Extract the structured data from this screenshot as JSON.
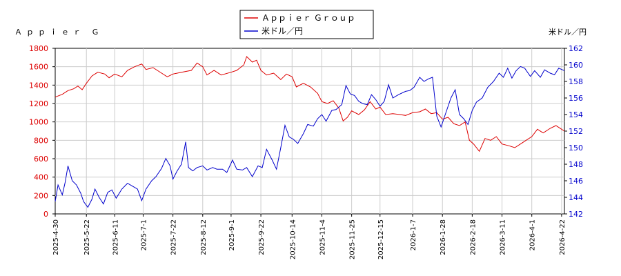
{
  "chart_data": {
    "type": "line",
    "title_left": "Ａｐｐｉｅｒ Ｇ",
    "title_right": "米ドル／円",
    "legend": {
      "position": "top-center",
      "entries": [
        {
          "name": "Ａｐｐｉｅｒ Ｇｒｏｕｐ",
          "color": "#dd0000"
        },
        {
          "name": "米ドル／円",
          "color": "#0000cc"
        }
      ]
    },
    "grid": true,
    "x_range": [
      "2025-04-30",
      "2026-04-24"
    ],
    "x_ticks": [
      "2025-4-30",
      "2025-5-22",
      "2025-6-11",
      "2025-7-1",
      "2025-7-22",
      "2025-8-12",
      "2025-9-1",
      "2025-9-22",
      "2025-10-14",
      "2025-11-4",
      "2025-11-25",
      "2025-12-15",
      "2026-1-7",
      "2026-1-28",
      "2026-2-18",
      "2026-3-11",
      "2026-4-1",
      "2026-4-22"
    ],
    "y_left": {
      "min": 0,
      "max": 1800,
      "ticks": [
        0,
        200,
        400,
        600,
        800,
        1000,
        1200,
        1400,
        1600,
        1800
      ],
      "color": "#dd0000"
    },
    "y_right": {
      "min": 142,
      "max": 162,
      "ticks": [
        142,
        144,
        146,
        148,
        150,
        152,
        154,
        156,
        158,
        160,
        162
      ],
      "color": "#0000cc"
    },
    "series": [
      {
        "name": "Ａｐｐｉｅｒ Ｇｒｏｕｐ",
        "axis": "left",
        "color": "#dd0000",
        "points": [
          [
            "2025-04-30",
            1270
          ],
          [
            "2025-05-05",
            1300
          ],
          [
            "2025-05-09",
            1340
          ],
          [
            "2025-05-13",
            1360
          ],
          [
            "2025-05-16",
            1390
          ],
          [
            "2025-05-19",
            1350
          ],
          [
            "2025-05-22",
            1420
          ],
          [
            "2025-05-26",
            1500
          ],
          [
            "2025-05-30",
            1540
          ],
          [
            "2025-06-04",
            1520
          ],
          [
            "2025-06-07",
            1480
          ],
          [
            "2025-06-11",
            1520
          ],
          [
            "2025-06-16",
            1490
          ],
          [
            "2025-06-20",
            1560
          ],
          [
            "2025-06-25",
            1600
          ],
          [
            "2025-06-30",
            1630
          ],
          [
            "2025-07-03",
            1570
          ],
          [
            "2025-07-08",
            1590
          ],
          [
            "2025-07-14",
            1530
          ],
          [
            "2025-07-18",
            1490
          ],
          [
            "2025-07-22",
            1520
          ],
          [
            "2025-07-28",
            1540
          ],
          [
            "2025-08-04",
            1560
          ],
          [
            "2025-08-08",
            1640
          ],
          [
            "2025-08-12",
            1600
          ],
          [
            "2025-08-15",
            1510
          ],
          [
            "2025-08-20",
            1560
          ],
          [
            "2025-08-25",
            1510
          ],
          [
            "2025-09-01",
            1540
          ],
          [
            "2025-09-05",
            1560
          ],
          [
            "2025-09-10",
            1620
          ],
          [
            "2025-09-12",
            1710
          ],
          [
            "2025-09-16",
            1650
          ],
          [
            "2025-09-19",
            1670
          ],
          [
            "2025-09-22",
            1560
          ],
          [
            "2025-09-26",
            1510
          ],
          [
            "2025-10-01",
            1530
          ],
          [
            "2025-10-06",
            1460
          ],
          [
            "2025-10-10",
            1520
          ],
          [
            "2025-10-14",
            1490
          ],
          [
            "2025-10-17",
            1380
          ],
          [
            "2025-10-22",
            1420
          ],
          [
            "2025-10-27",
            1380
          ],
          [
            "2025-11-01",
            1310
          ],
          [
            "2025-11-04",
            1220
          ],
          [
            "2025-11-08",
            1200
          ],
          [
            "2025-11-12",
            1230
          ],
          [
            "2025-11-16",
            1150
          ],
          [
            "2025-11-19",
            1010
          ],
          [
            "2025-11-22",
            1050
          ],
          [
            "2025-11-25",
            1120
          ],
          [
            "2025-11-30",
            1080
          ],
          [
            "2025-12-04",
            1130
          ],
          [
            "2025-12-08",
            1220
          ],
          [
            "2025-12-12",
            1140
          ],
          [
            "2025-12-15",
            1160
          ],
          [
            "2025-12-19",
            1080
          ],
          [
            "2025-12-24",
            1090
          ],
          [
            "2025-12-29",
            1080
          ],
          [
            "2026-01-02",
            1070
          ],
          [
            "2026-01-07",
            1100
          ],
          [
            "2026-01-12",
            1110
          ],
          [
            "2026-01-16",
            1140
          ],
          [
            "2026-01-20",
            1090
          ],
          [
            "2026-01-24",
            1100
          ],
          [
            "2026-01-28",
            1030
          ],
          [
            "2026-02-01",
            1050
          ],
          [
            "2026-02-05",
            980
          ],
          [
            "2026-02-09",
            960
          ],
          [
            "2026-02-13",
            1000
          ],
          [
            "2026-02-16",
            800
          ],
          [
            "2026-02-19",
            760
          ],
          [
            "2026-02-23",
            680
          ],
          [
            "2026-02-27",
            820
          ],
          [
            "2026-03-03",
            800
          ],
          [
            "2026-03-07",
            840
          ],
          [
            "2026-03-11",
            760
          ],
          [
            "2026-03-16",
            740
          ],
          [
            "2026-03-20",
            720
          ],
          [
            "2026-03-24",
            760
          ],
          [
            "2026-03-28",
            800
          ],
          [
            "2026-04-01",
            840
          ],
          [
            "2026-04-05",
            920
          ],
          [
            "2026-04-09",
            880
          ],
          [
            "2026-04-14",
            930
          ],
          [
            "2026-04-18",
            960
          ],
          [
            "2026-04-22",
            920
          ],
          [
            "2026-04-24",
            900
          ]
        ]
      },
      {
        "name": "米ドル／円",
        "axis": "right",
        "color": "#0000cc",
        "points": [
          [
            "2025-04-30",
            143.5
          ],
          [
            "2025-05-02",
            145.5
          ],
          [
            "2025-05-05",
            144.3
          ],
          [
            "2025-05-07",
            145.8
          ],
          [
            "2025-05-09",
            147.8
          ],
          [
            "2025-05-12",
            146.0
          ],
          [
            "2025-05-15",
            145.5
          ],
          [
            "2025-05-18",
            144.5
          ],
          [
            "2025-05-20",
            143.5
          ],
          [
            "2025-05-23",
            142.8
          ],
          [
            "2025-05-26",
            143.8
          ],
          [
            "2025-05-28",
            145.0
          ],
          [
            "2025-05-31",
            144.0
          ],
          [
            "2025-06-03",
            143.2
          ],
          [
            "2025-06-06",
            144.6
          ],
          [
            "2025-06-09",
            144.9
          ],
          [
            "2025-06-12",
            143.9
          ],
          [
            "2025-06-16",
            145.0
          ],
          [
            "2025-06-20",
            145.7
          ],
          [
            "2025-06-24",
            145.3
          ],
          [
            "2025-06-27",
            145.0
          ],
          [
            "2025-06-30",
            143.6
          ],
          [
            "2025-07-03",
            145.0
          ],
          [
            "2025-07-07",
            146.0
          ],
          [
            "2025-07-10",
            146.5
          ],
          [
            "2025-07-14",
            147.5
          ],
          [
            "2025-07-17",
            148.7
          ],
          [
            "2025-07-20",
            147.8
          ],
          [
            "2025-07-22",
            146.2
          ],
          [
            "2025-07-25",
            147.2
          ],
          [
            "2025-07-28",
            148.0
          ],
          [
            "2025-07-31",
            150.7
          ],
          [
            "2025-08-02",
            147.6
          ],
          [
            "2025-08-05",
            147.2
          ],
          [
            "2025-08-08",
            147.6
          ],
          [
            "2025-08-12",
            147.8
          ],
          [
            "2025-08-15",
            147.3
          ],
          [
            "2025-08-19",
            147.6
          ],
          [
            "2025-08-22",
            147.4
          ],
          [
            "2025-08-26",
            147.4
          ],
          [
            "2025-08-29",
            147.0
          ],
          [
            "2025-09-02",
            148.5
          ],
          [
            "2025-09-05",
            147.4
          ],
          [
            "2025-09-09",
            147.3
          ],
          [
            "2025-09-12",
            147.6
          ],
          [
            "2025-09-16",
            146.5
          ],
          [
            "2025-09-20",
            147.8
          ],
          [
            "2025-09-23",
            147.6
          ],
          [
            "2025-09-26",
            149.8
          ],
          [
            "2025-09-30",
            148.5
          ],
          [
            "2025-10-03",
            147.4
          ],
          [
            "2025-10-06",
            150.0
          ],
          [
            "2025-10-09",
            152.7
          ],
          [
            "2025-10-12",
            151.3
          ],
          [
            "2025-10-15",
            151.0
          ],
          [
            "2025-10-18",
            150.5
          ],
          [
            "2025-10-22",
            151.7
          ],
          [
            "2025-10-25",
            152.8
          ],
          [
            "2025-10-29",
            152.6
          ],
          [
            "2025-11-01",
            153.5
          ],
          [
            "2025-11-04",
            154.0
          ],
          [
            "2025-11-07",
            153.2
          ],
          [
            "2025-11-11",
            154.5
          ],
          [
            "2025-11-14",
            154.6
          ],
          [
            "2025-11-18",
            155.2
          ],
          [
            "2025-11-21",
            157.5
          ],
          [
            "2025-11-24",
            156.5
          ],
          [
            "2025-11-27",
            156.3
          ],
          [
            "2025-11-30",
            155.6
          ],
          [
            "2025-12-03",
            155.3
          ],
          [
            "2025-12-06",
            155.2
          ],
          [
            "2025-12-09",
            156.4
          ],
          [
            "2025-12-12",
            155.8
          ],
          [
            "2025-12-15",
            155.0
          ],
          [
            "2025-12-18",
            155.6
          ],
          [
            "2025-12-21",
            157.6
          ],
          [
            "2025-12-24",
            156.0
          ],
          [
            "2025-12-28",
            156.4
          ],
          [
            "2026-01-02",
            156.8
          ],
          [
            "2026-01-05",
            156.9
          ],
          [
            "2026-01-08",
            157.3
          ],
          [
            "2026-01-12",
            158.5
          ],
          [
            "2026-01-15",
            158.0
          ],
          [
            "2026-01-18",
            158.3
          ],
          [
            "2026-01-21",
            158.5
          ],
          [
            "2026-01-24",
            153.8
          ],
          [
            "2026-01-27",
            152.5
          ],
          [
            "2026-01-30",
            154.0
          ],
          [
            "2026-02-03",
            156.0
          ],
          [
            "2026-02-06",
            157.0
          ],
          [
            "2026-02-09",
            154.0
          ],
          [
            "2026-02-12",
            153.5
          ],
          [
            "2026-02-15",
            152.8
          ],
          [
            "2026-02-18",
            154.5
          ],
          [
            "2026-02-21",
            155.5
          ],
          [
            "2026-02-25",
            156.0
          ],
          [
            "2026-03-01",
            157.3
          ],
          [
            "2026-03-05",
            158.0
          ],
          [
            "2026-03-09",
            159.0
          ],
          [
            "2026-03-12",
            158.5
          ],
          [
            "2026-03-15",
            159.6
          ],
          [
            "2026-03-18",
            158.4
          ],
          [
            "2026-03-21",
            159.3
          ],
          [
            "2026-03-24",
            159.8
          ],
          [
            "2026-03-27",
            159.6
          ],
          [
            "2026-03-31",
            158.6
          ],
          [
            "2026-04-03",
            159.3
          ],
          [
            "2026-04-07",
            158.5
          ],
          [
            "2026-04-10",
            159.4
          ],
          [
            "2026-04-14",
            159.0
          ],
          [
            "2026-04-17",
            158.8
          ],
          [
            "2026-04-20",
            159.6
          ],
          [
            "2026-04-24",
            159.3
          ]
        ]
      }
    ]
  }
}
